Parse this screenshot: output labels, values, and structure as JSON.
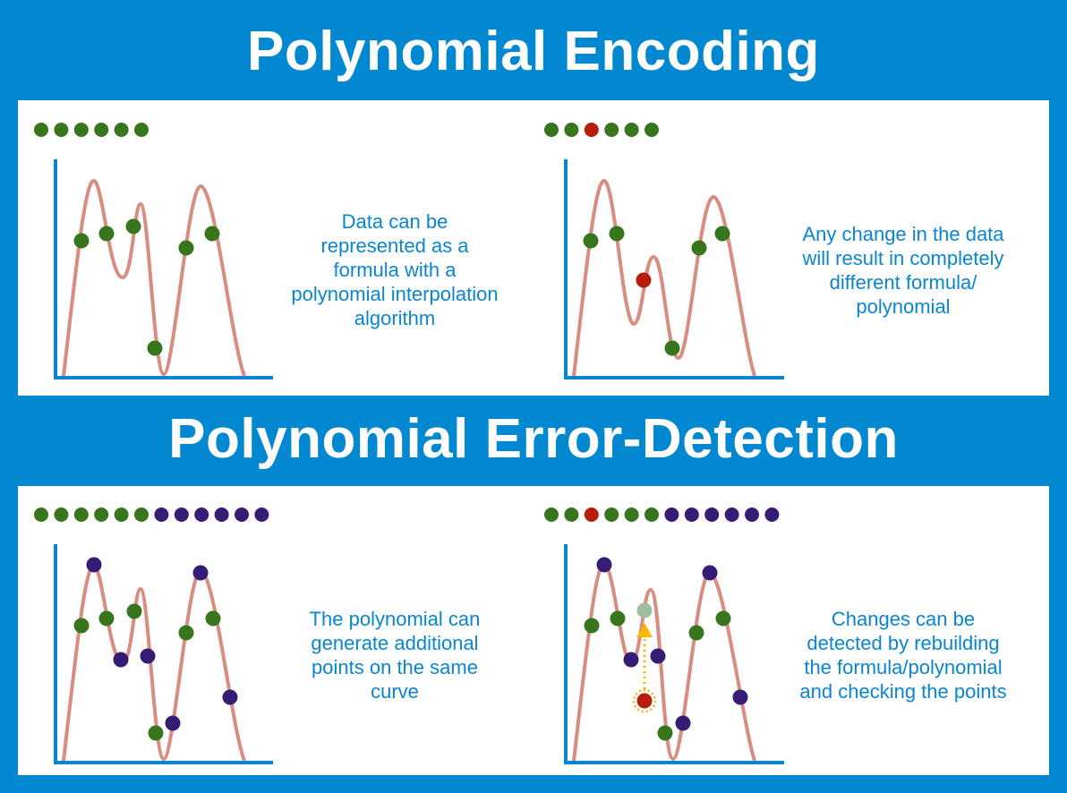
{
  "sections": [
    {
      "title": "Polynomial Encoding",
      "panels": [
        {
          "dots": [
            "green",
            "green",
            "green",
            "green",
            "green",
            "green"
          ],
          "description": [
            "Data can be",
            "represented as a",
            "formula with a",
            "polynomial interpolation",
            "algorithm"
          ]
        },
        {
          "dots": [
            "green",
            "green",
            "red",
            "green",
            "green",
            "green"
          ],
          "description": [
            "Any change in the data",
            "will result in completely",
            "different formula/",
            "polynomial"
          ]
        }
      ]
    },
    {
      "title": "Polynomial Error-Detection",
      "panels": [
        {
          "dots": [
            "green",
            "green",
            "green",
            "green",
            "green",
            "green",
            "purple",
            "purple",
            "purple",
            "purple",
            "purple",
            "purple"
          ],
          "description": [
            "The polynomial can",
            "generate additional",
            "points on the same",
            "curve"
          ]
        },
        {
          "dots": [
            "green",
            "green",
            "red",
            "green",
            "green",
            "green",
            "purple",
            "purple",
            "purple",
            "purple",
            "purple",
            "purple"
          ],
          "description": [
            "Changes can be",
            "detected by rebuilding",
            "the formula/polynomial",
            "and checking the points"
          ]
        }
      ]
    }
  ],
  "colors": {
    "background": "#0288d1",
    "text": "#0a86d0",
    "axis": "#0a86d0",
    "curve": "#d98c80",
    "green": "#38761d",
    "red": "#b71c0c",
    "purple": "#351c75",
    "corrected": "#9fc09a",
    "arrow": "#f5b800"
  }
}
